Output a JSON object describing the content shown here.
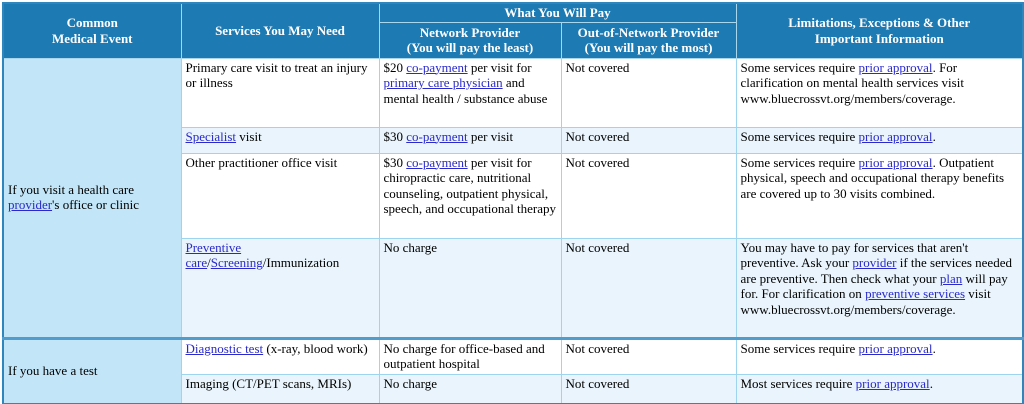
{
  "document_title": "Summary of Benefits coverage table",
  "colors": {
    "header_bg": "#1e7ab2",
    "header_text": "#ffffff",
    "event_cell_bg": "#c2e6f8",
    "row_shade_bg": "#e9f4fc",
    "link_color": "#2a2acc",
    "outer_border": "#2e86bd",
    "inner_border": "#9fd4ee",
    "section_divider": "#4f9ccd"
  },
  "header": {
    "common_medical_event": "Common\nMedical Event",
    "services": "Services You May Need",
    "what_you_will_pay": "What You Will Pay",
    "network": "Network Provider\n(You will pay the least)",
    "out_of_network": "Out-of-Network Provider\n(You will pay the most)",
    "limitations": "Limitations, Exceptions & Other\nImportant Information"
  },
  "table": {
    "sections": [
      {
        "event": [
          {
            "t": "If you visit a health care "
          },
          {
            "t": "provider",
            "link": true
          },
          {
            "t": "'s office or clinic"
          }
        ],
        "rows": [
          {
            "service": [
              {
                "t": "Primary care visit to treat an injury or illness"
              }
            ],
            "network": [
              {
                "t": "$20 "
              },
              {
                "t": "co-payment",
                "link": true
              },
              {
                "t": " per visit for "
              },
              {
                "t": "primary care physician",
                "link": true
              },
              {
                "t": " and mental health / substance abuse"
              }
            ],
            "out_of_network": [
              {
                "t": "Not covered"
              }
            ],
            "limitations": [
              {
                "t": "Some services require "
              },
              {
                "t": "prior approval",
                "link": true
              },
              {
                "t": ". For clarification on mental health services visit www.bluecrossvt.org/members/coverage."
              }
            ]
          },
          {
            "service": [
              {
                "t": "Specialist",
                "link": true
              },
              {
                "t": " visit"
              }
            ],
            "network": [
              {
                "t": "$30 "
              },
              {
                "t": "co-payment",
                "link": true
              },
              {
                "t": " per visit"
              }
            ],
            "out_of_network": [
              {
                "t": "Not covered"
              }
            ],
            "limitations": [
              {
                "t": "Some services require "
              },
              {
                "t": "prior approval",
                "link": true
              },
              {
                "t": "."
              }
            ]
          },
          {
            "service": [
              {
                "t": "Other practitioner office visit"
              }
            ],
            "network": [
              {
                "t": "$30 "
              },
              {
                "t": "co-payment",
                "link": true
              },
              {
                "t": " per visit for chiropractic care, nutritional counseling, outpatient physical, speech, and occupational therapy"
              }
            ],
            "out_of_network": [
              {
                "t": "Not covered"
              }
            ],
            "limitations": [
              {
                "t": "Some services require "
              },
              {
                "t": "prior approval",
                "link": true
              },
              {
                "t": ". Outpatient physical, speech and occupational therapy benefits are covered up to 30 visits combined."
              }
            ]
          },
          {
            "service": [
              {
                "t": "Preventive care",
                "link": true
              },
              {
                "t": "/"
              },
              {
                "t": "Screening",
                "link": true
              },
              {
                "t": "/Immunization"
              }
            ],
            "network": [
              {
                "t": "No charge"
              }
            ],
            "out_of_network": [
              {
                "t": "Not covered"
              }
            ],
            "limitations": [
              {
                "t": "You may have to pay for services that aren't preventive. Ask your "
              },
              {
                "t": "provider",
                "link": true
              },
              {
                "t": " if the services needed are preventive. Then check what your "
              },
              {
                "t": "plan",
                "link": true
              },
              {
                "t": " will pay for. For clarification on "
              },
              {
                "t": "preventive services",
                "link": true
              },
              {
                "t": " visit www.bluecrossvt.org/members/coverage."
              }
            ]
          }
        ]
      },
      {
        "event": [
          {
            "t": "If you have a test"
          }
        ],
        "rows": [
          {
            "service": [
              {
                "t": "Diagnostic test",
                "link": true
              },
              {
                "t": " (x-ray, blood work)"
              }
            ],
            "network": [
              {
                "t": "No charge for office-based and outpatient hospital"
              }
            ],
            "out_of_network": [
              {
                "t": "Not covered"
              }
            ],
            "limitations": [
              {
                "t": "Some services require "
              },
              {
                "t": "prior approval",
                "link": true
              },
              {
                "t": "."
              }
            ]
          },
          {
            "service": [
              {
                "t": "Imaging (CT/PET scans, MRIs)"
              }
            ],
            "network": [
              {
                "t": "No charge"
              }
            ],
            "out_of_network": [
              {
                "t": "Not covered"
              }
            ],
            "limitations": [
              {
                "t": "Most services require "
              },
              {
                "t": "prior approval",
                "link": true
              },
              {
                "t": "."
              }
            ]
          }
        ]
      }
    ]
  }
}
